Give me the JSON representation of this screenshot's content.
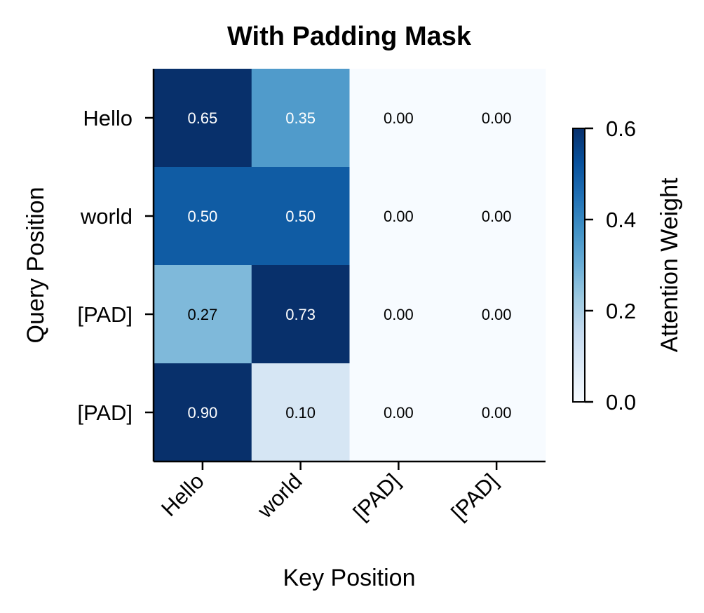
{
  "chart_data": {
    "type": "heatmap",
    "title": "With Padding Mask",
    "xlabel": "Key Position",
    "ylabel": "Query Position",
    "x_categories": [
      "Hello",
      "world",
      "[PAD]",
      "[PAD]"
    ],
    "y_categories": [
      "Hello",
      "world",
      "[PAD]",
      "[PAD]"
    ],
    "values": [
      [
        0.65,
        0.35,
        0.0,
        0.0
      ],
      [
        0.5,
        0.5,
        0.0,
        0.0
      ],
      [
        0.27,
        0.73,
        0.0,
        0.0
      ],
      [
        0.9,
        0.1,
        0.0,
        0.0
      ]
    ],
    "cell_labels": [
      [
        "0.65",
        "0.35",
        "0.00",
        "0.00"
      ],
      [
        "0.50",
        "0.50",
        "0.00",
        "0.00"
      ],
      [
        "0.27",
        "0.73",
        "0.00",
        "0.00"
      ],
      [
        "0.90",
        "0.10",
        "0.00",
        "0.00"
      ]
    ],
    "colormap": "Blues",
    "color_range": [
      0,
      0.6
    ],
    "colorbar": {
      "label": "Attention Weight",
      "ticks": [
        0.0,
        0.2,
        0.4,
        0.6
      ],
      "tick_labels": [
        "0.0",
        "0.2",
        "0.4",
        "0.6"
      ]
    },
    "grid": false
  }
}
